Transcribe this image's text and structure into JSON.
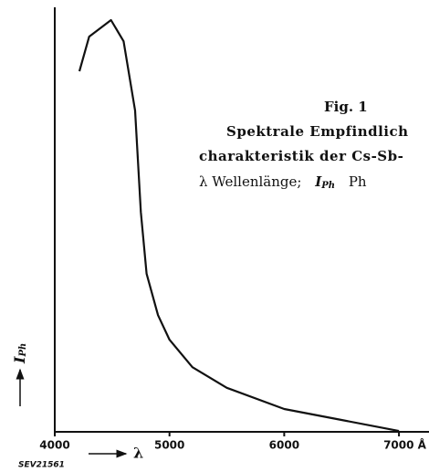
{
  "chart_data": {
    "type": "line",
    "x": [
      4215,
      4300,
      4490,
      4600,
      4700,
      4750,
      4800,
      4900,
      5000,
      5200,
      5500,
      6000,
      6500,
      7000
    ],
    "series": [
      {
        "color": "#111111",
        "values": [
          85.3,
          93.5,
          97.4,
          92.4,
          76,
          52,
          37.4,
          27.6,
          21.8,
          15.3,
          10.4,
          5.4,
          2.8,
          0.2
        ]
      }
    ],
    "xlim": [
      4000,
      7250
    ],
    "ylim": [
      0,
      100
    ],
    "xticks": [
      4000,
      5000,
      6000,
      {
        "value": 7000,
        "label": "7000 Å"
      }
    ],
    "x_label": "λ",
    "y_label": {
      "symbol": "I",
      "subscript": "Ph"
    },
    "figure_id": "SEV21561",
    "caption": {
      "figure": "Fig. 1",
      "lines": [
        "Spektrale Empfindlich",
        "charakteristik der Cs-Sb-"
      ],
      "legend": {
        "text": "λ Wellenlänge;",
        "symbol": "I",
        "subscript": "Ph",
        "rest": "Ph"
      }
    },
    "grid": false
  }
}
